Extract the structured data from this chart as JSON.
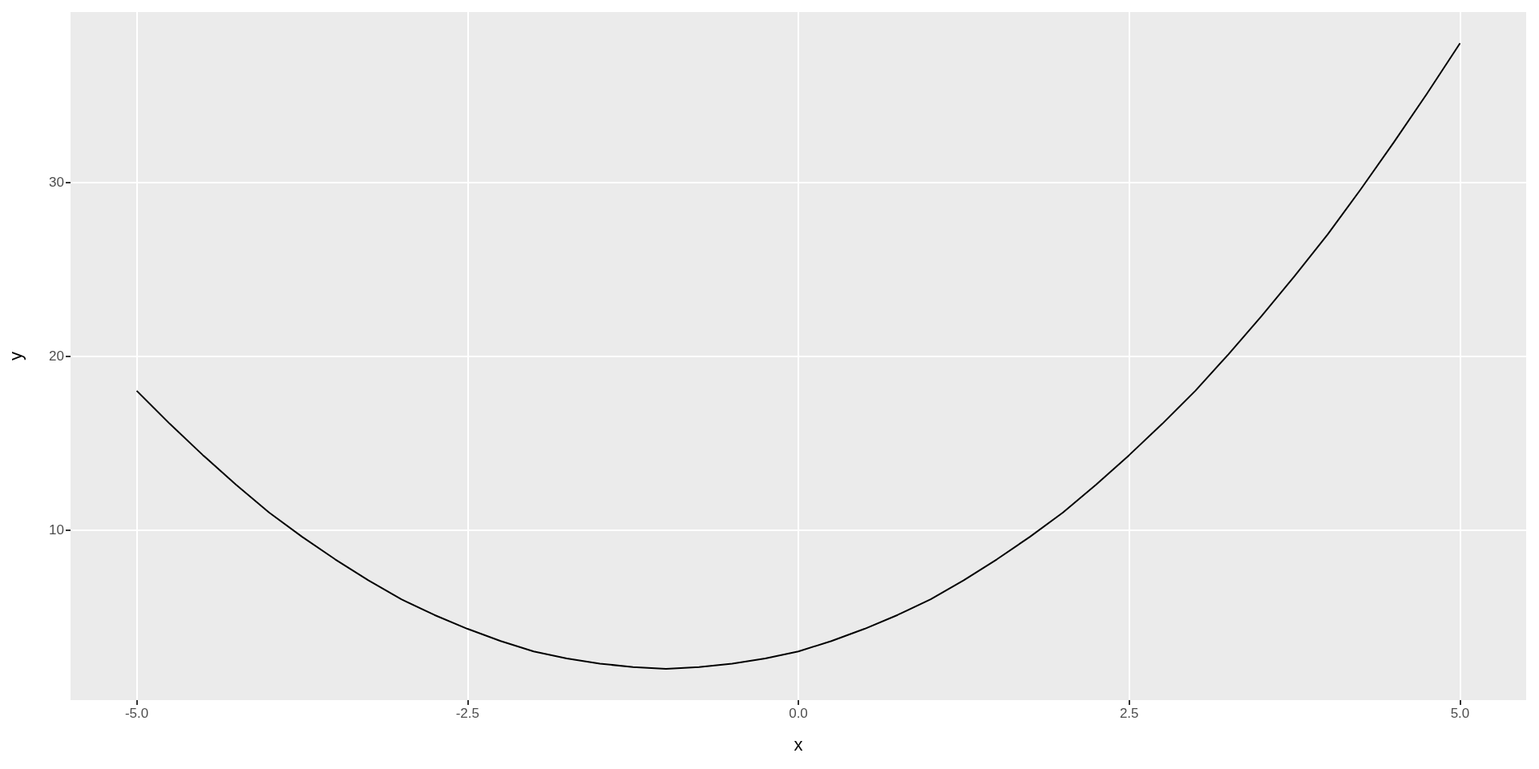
{
  "chart_data": {
    "type": "line",
    "xlabel": "x",
    "ylabel": "y",
    "x": [
      -5,
      -4.75,
      -4.5,
      -4.25,
      -4,
      -3.75,
      -3.5,
      -3.25,
      -3,
      -2.75,
      -2.5,
      -2.25,
      -2,
      -1.75,
      -1.5,
      -1.25,
      -1,
      -0.75,
      -0.5,
      -0.25,
      0,
      0.25,
      0.5,
      0.75,
      1,
      1.25,
      1.5,
      1.75,
      2,
      2.25,
      2.5,
      2.75,
      3,
      3.25,
      3.5,
      3.75,
      4,
      4.25,
      4.5,
      4.75,
      5
    ],
    "series": [
      {
        "color": "#000000",
        "values": [
          18,
          16.1,
          14.3,
          12.6,
          11,
          9.6,
          8.3,
          7.1,
          6,
          5.1,
          4.3,
          3.6,
          3,
          2.6,
          2.3,
          2.1,
          2,
          2.1,
          2.3,
          2.6,
          3,
          3.6,
          4.3,
          5.1,
          6,
          7.1,
          8.3,
          9.6,
          11,
          12.6,
          14.3,
          16.1,
          18,
          20.1,
          22.3,
          24.6,
          27,
          29.6,
          32.3,
          35.1,
          38
        ]
      }
    ],
    "xlim": [
      -5.5,
      5.5
    ],
    "xticks": [
      {
        "value": -5,
        "label": "-5.0"
      },
      {
        "value": -2.5,
        "label": "-2.5"
      },
      {
        "value": 0,
        "label": "0.0"
      },
      {
        "value": 2.5,
        "label": "2.5"
      },
      {
        "value": 5,
        "label": "5.0"
      }
    ],
    "ylim": [
      0.2,
      39.8
    ],
    "yticks": [
      10,
      20,
      30
    ],
    "grid": true,
    "marker": "none",
    "line_style": "solid"
  }
}
